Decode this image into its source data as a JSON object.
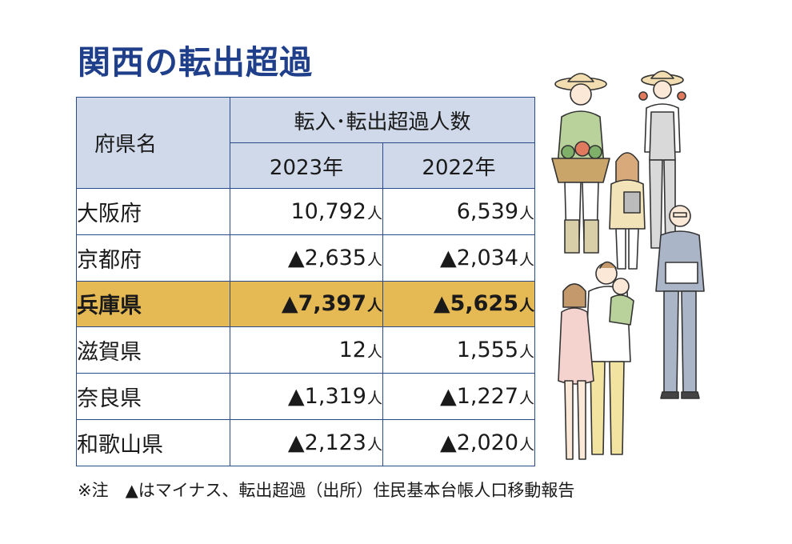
{
  "title": "関西の転出超過",
  "table": {
    "col_name_header": "府県名",
    "group_header": "転入･転出超過人数",
    "year_headers": [
      "2023年",
      "2022年"
    ],
    "unit": "人",
    "rows": [
      {
        "name": "大阪府",
        "y2023": "10,792",
        "y2022": "6,539",
        "highlight": false
      },
      {
        "name": "京都府",
        "y2023": "▲2,635",
        "y2022": "▲2,034",
        "highlight": false
      },
      {
        "name": "兵庫県",
        "y2023": "▲7,397",
        "y2022": "▲5,625",
        "highlight": true
      },
      {
        "name": "滋賀県",
        "y2023": "12",
        "y2022": "1,555",
        "highlight": false
      },
      {
        "name": "奈良県",
        "y2023": "▲1,319",
        "y2022": "▲1,227",
        "highlight": false
      },
      {
        "name": "和歌山県",
        "y2023": "▲2,123",
        "y2022": "▲2,020",
        "highlight": false
      }
    ]
  },
  "note": "※注　▲はマイナス、転出超過（出所）住民基本台帳人口移動報告",
  "colors": {
    "title": "#1f3f8a",
    "header_bg": "#cfd9ea",
    "border": "#2b4a8a",
    "highlight_bg": "#e5b954"
  },
  "illustration": "people-group-illustration"
}
